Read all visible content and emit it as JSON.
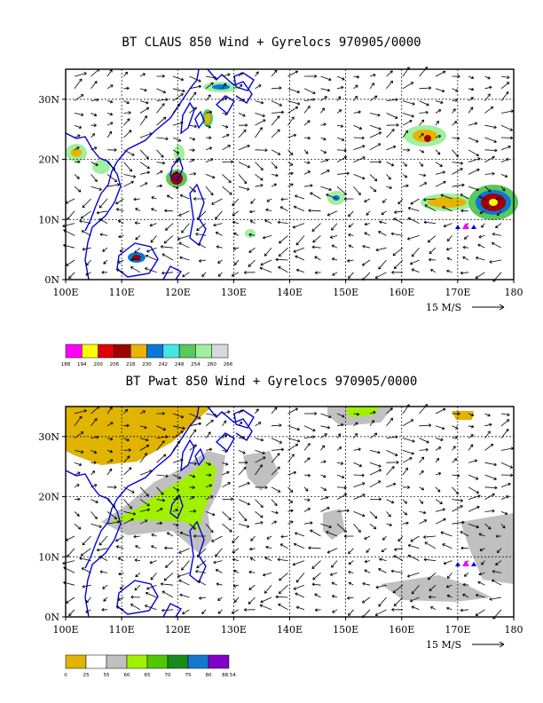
{
  "map1": {
    "title": "BT CLAUS 850 Wind + Gyrelocs 970905/0000",
    "x_ticks": [
      "100E",
      "110E",
      "120E",
      "130E",
      "140E",
      "150E",
      "160E",
      "170E",
      "180"
    ],
    "y_ticks": [
      "0N",
      "10N",
      "20N",
      "30N"
    ],
    "reference_vector": "15 M/S",
    "colorbar": {
      "colors": [
        "#ff00ff",
        "#ffff00",
        "#e00000",
        "#a00000",
        "#e8b400",
        "#0a78d8",
        "#46e6e6",
        "#5ac85a",
        "#a0f0a0",
        "#d8d8d8"
      ],
      "labels": [
        "188",
        "194",
        "200",
        "206",
        "218",
        "230",
        "242",
        "248",
        "254",
        "260",
        "266"
      ]
    }
  },
  "map2": {
    "title": "BT Pwat 850 Wind + Gyrelocs 970905/0000",
    "x_ticks": [
      "100E",
      "110E",
      "120E",
      "130E",
      "140E",
      "150E",
      "160E",
      "170E",
      "180"
    ],
    "y_ticks": [
      "0N",
      "10N",
      "20N",
      "30N"
    ],
    "reference_vector": "15 M/S",
    "colorbar": {
      "colors": [
        "#e0b400",
        "#ffffff",
        "#c0c0c0",
        "#a0f000",
        "#50c800",
        "#1a8c1a",
        "#1478d2",
        "#8000c8"
      ],
      "labels": [
        "0",
        "25",
        "55",
        "60",
        "65",
        "70",
        "75",
        "80",
        "88.54"
      ]
    }
  },
  "colors": {
    "coast": "#0000e6",
    "marker_magenta": "#ff00ff",
    "marker_blue": "#0000e6"
  }
}
